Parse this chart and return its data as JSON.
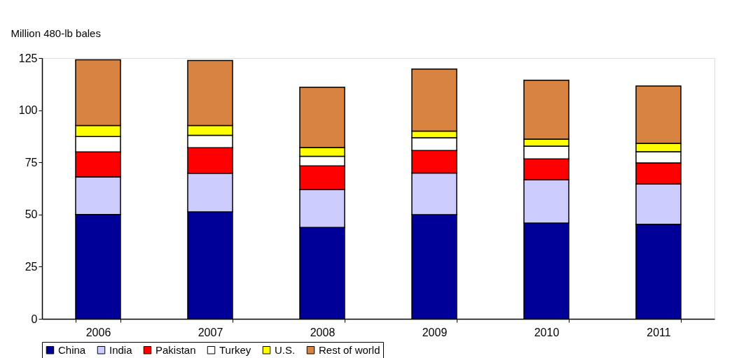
{
  "chart_data": {
    "type": "bar",
    "stacked": true,
    "ylabel": "Million 480-lb bales",
    "categories": [
      "2006",
      "2007",
      "2008",
      "2009",
      "2010",
      "2011"
    ],
    "series": [
      {
        "name": "China",
        "color": "#000099",
        "values": [
          50,
          51.3,
          43.8,
          49.9,
          45.9,
          45.3
        ]
      },
      {
        "name": "India",
        "color": "#ccccff",
        "values": [
          18,
          18.5,
          18.1,
          20,
          20.7,
          19.3
        ]
      },
      {
        "name": "Pakistan",
        "color": "#ff0000",
        "values": [
          12,
          12.2,
          11.4,
          10.8,
          10.1,
          10.1
        ]
      },
      {
        "name": "Turkey",
        "color": "#ffffff",
        "values": [
          7.4,
          6,
          4.6,
          6.1,
          6.1,
          5.4
        ]
      },
      {
        "name": "U.S.",
        "color": "#ffff00",
        "values": [
          5.3,
          4.7,
          4.2,
          3.2,
          3.3,
          4
        ]
      },
      {
        "name": "Rest of world",
        "color": "#d98340",
        "values": [
          31.5,
          31.1,
          28.9,
          29.7,
          28.3,
          27.5
        ]
      }
    ],
    "ylim": [
      0,
      125
    ],
    "yticks": [
      0,
      25,
      50,
      75,
      100,
      125
    ],
    "grid": false,
    "legend": "bottom"
  }
}
